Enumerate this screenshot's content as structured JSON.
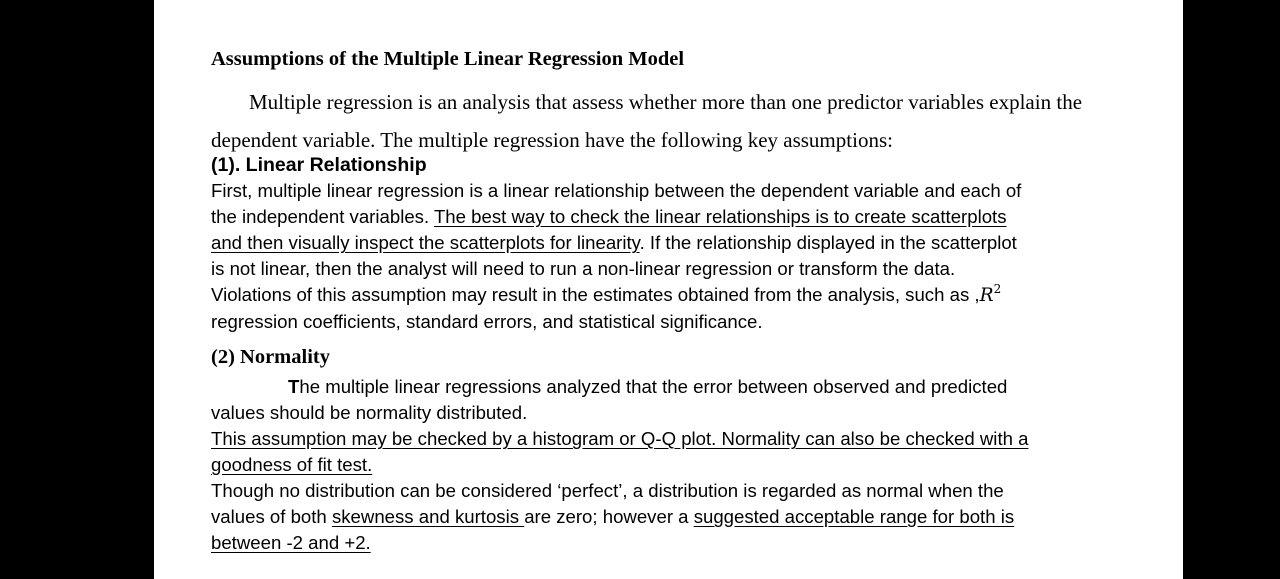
{
  "document": {
    "title": "Assumptions of the Multiple Linear Regression Model",
    "intro": {
      "line1": "Multiple regression is an analysis that assess whether more than one predictor variables explain",
      "line2": "the dependent variable. The multiple regression have the following key assumptions:"
    },
    "section1": {
      "heading": "(1). Linear Relationship",
      "l1": "First, multiple linear regression is a linear relationship between the dependent variable and each of",
      "l2_a": "the independent variables. ",
      "l2_u": "The best way to check the linear relationships is to create scatterplots",
      "l3_u": "and then visually inspect the scatterplots for linearity",
      "l3_b": ". If the relationship displayed in the scatterplot",
      "l4": "is not linear, then the analyst will need to run a non-linear regression or transform the data.",
      "l5_a": "Violations of this assumption may result in the estimates obtained from the analysis, such as ,",
      "l5_math": "R",
      "l5_sup": "2",
      "l6": "regression coefficients, standard errors, and statistical significance."
    },
    "section2": {
      "heading": "(2) Normality",
      "p1_first": "T",
      "p1_rest": "he multiple linear regressions analyzed that the error between observed and predicted",
      "p1_l2": "values should be normality distributed.",
      "p2_l1": "This assumption may be checked by a histogram or Q-Q plot. Normality can also be checked with a",
      "p2_l2": "goodness of fit test.",
      "p3_l1": "Though no distribution can be considered ‘perfect’, a distribution is regarded as normal when the",
      "p3_l2_a": "values of both ",
      "p3_l2_u1": "skewness and kurtosis ",
      "p3_l2_b": "are zero; however a ",
      "p3_l2_u2": "suggested acceptable range for both is",
      "p3_l3_u": "between -2 and +2."
    }
  }
}
